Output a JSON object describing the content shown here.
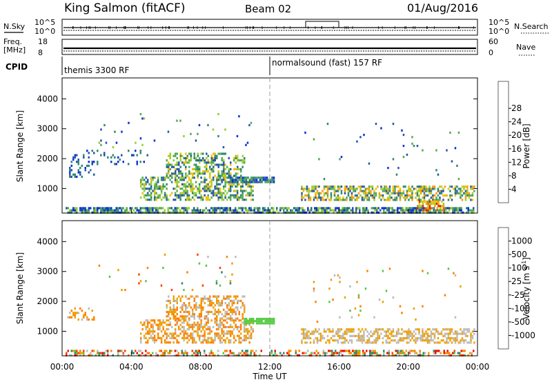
{
  "header": {
    "title": "King Salmon (fitACF)",
    "beam": "Beam 02",
    "date": "01/Aug/2016"
  },
  "top_panels": {
    "nsky_label": "N.Sky",
    "nsky_ticks": [
      "10^5",
      "10^0"
    ],
    "nsearch_label": "N.Search",
    "nsearch_ticks": [
      "10^5",
      "10^0"
    ],
    "freq_label": "Freq.",
    "freq_unit": "[MHz]",
    "freq_ticks": [
      "18",
      "8"
    ],
    "nave_label": "Nave",
    "nave_ticks": [
      "60",
      "0"
    ],
    "cpid_label": "CPID",
    "cpid_segments": [
      {
        "name": "themis 3300 RF",
        "start_hour": 0,
        "end_hour": 12
      },
      {
        "name": "normalsound (fast) 157 RF",
        "start_hour": 12,
        "end_hour": 24
      }
    ]
  },
  "chart_data": [
    {
      "type": "heatmap",
      "name": "power",
      "xlabel": "",
      "ylabel": "Slant Range [km]",
      "xlim": [
        0,
        24
      ],
      "ylim": [
        180,
        4700
      ],
      "yticks": [
        "1000",
        "2000",
        "3000",
        "4000"
      ],
      "ytick_values": [
        1000,
        2000,
        3000,
        4000
      ],
      "colorbar_label": "Power [dB]",
      "colorbar_ticks": [
        "4",
        "8",
        "12",
        "16",
        "20",
        "24",
        "28"
      ],
      "colorbar_colors": [
        "#1030e0",
        "#2a55a8",
        "#2e8a70",
        "#55aa55",
        "#99cc33",
        "#f0c000",
        "#ff9900",
        "#ff6000",
        "#ee2000"
      ],
      "regions": [
        {
          "t0": 0.2,
          "t1": 23.8,
          "r0": 180,
          "r1": 380,
          "density": 0.75,
          "level": [
            0,
            4
          ]
        },
        {
          "t0": 0.3,
          "t1": 1.8,
          "r0": 1400,
          "r1": 1800,
          "density": 0.35,
          "level": [
            0,
            2
          ]
        },
        {
          "t0": 0.5,
          "t1": 5.0,
          "r0": 1800,
          "r1": 2300,
          "density": 0.2,
          "level": [
            0,
            2
          ]
        },
        {
          "t0": 4.5,
          "t1": 11.0,
          "r0": 600,
          "r1": 1400,
          "density": 0.55,
          "level": [
            1,
            5
          ]
        },
        {
          "t0": 6.0,
          "t1": 10.5,
          "r0": 1400,
          "r1": 2200,
          "density": 0.45,
          "level": [
            1,
            5
          ]
        },
        {
          "t0": 9.5,
          "t1": 12.2,
          "r0": 1200,
          "r1": 1400,
          "density": 0.85,
          "level": [
            0,
            3
          ]
        },
        {
          "t0": 13.8,
          "t1": 23.8,
          "r0": 600,
          "r1": 1100,
          "density": 0.6,
          "level": [
            1,
            6
          ]
        },
        {
          "t0": 20.5,
          "t1": 22.0,
          "r0": 300,
          "r1": 600,
          "density": 0.7,
          "level": [
            3,
            8
          ]
        },
        {
          "t0": 2.0,
          "t1": 11.0,
          "r0": 2400,
          "r1": 3600,
          "density": 0.03,
          "level": [
            0,
            4
          ]
        },
        {
          "t0": 14.0,
          "t1": 23.0,
          "r0": 1300,
          "r1": 3200,
          "density": 0.02,
          "level": [
            0,
            3
          ]
        }
      ]
    },
    {
      "type": "heatmap",
      "name": "velocity",
      "xlabel": "Time UT",
      "ylabel": "Slant Range [km]",
      "xlim": [
        0,
        24
      ],
      "ylim": [
        180,
        4700
      ],
      "xticks": [
        "00:00",
        "04:00",
        "08:00",
        "12:00",
        "16:00",
        "20:00",
        "00:00"
      ],
      "xtick_values": [
        0,
        4,
        8,
        12,
        16,
        20,
        24
      ],
      "yticks": [
        "1000",
        "2000",
        "3000",
        "4000"
      ],
      "ytick_values": [
        1000,
        2000,
        3000,
        4000
      ],
      "colorbar_label": "Velocity [m s",
      "colorbar_label_sup": "-1",
      "colorbar_label_end": "]",
      "colorbar_ticks": [
        "1000",
        "500",
        "100",
        "25",
        "-25",
        "-100",
        "-500",
        "-1000"
      ],
      "colorbar_colors": [
        "#1a3ad0",
        "#2a55a8",
        "#2e8a70",
        "#55cc44",
        "#bbbbbb",
        "#f0a000",
        "#ff8000",
        "#ff4000",
        "#ee1000"
      ],
      "regions": [
        {
          "t0": 0.2,
          "t1": 23.8,
          "r0": 180,
          "r1": 380,
          "density": 0.45,
          "level": [
            2,
            8
          ]
        },
        {
          "t0": 0.3,
          "t1": 1.8,
          "r0": 1400,
          "r1": 1800,
          "density": 0.3,
          "level": [
            4,
            6
          ]
        },
        {
          "t0": 4.5,
          "t1": 11.0,
          "r0": 600,
          "r1": 1400,
          "density": 0.5,
          "level": [
            4,
            6
          ]
        },
        {
          "t0": 6.0,
          "t1": 10.5,
          "r0": 1400,
          "r1": 2200,
          "density": 0.45,
          "level": [
            4,
            6
          ]
        },
        {
          "t0": 10.5,
          "t1": 12.2,
          "r0": 1300,
          "r1": 1450,
          "density": 0.9,
          "level": [
            3,
            3
          ]
        },
        {
          "t0": 13.8,
          "t1": 23.8,
          "r0": 600,
          "r1": 1100,
          "density": 0.55,
          "level": [
            4,
            5
          ]
        },
        {
          "t0": 2.0,
          "t1": 11.0,
          "r0": 2400,
          "r1": 3600,
          "density": 0.03,
          "level": [
            2,
            7
          ]
        },
        {
          "t0": 14.0,
          "t1": 23.0,
          "r0": 1300,
          "r1": 3200,
          "density": 0.02,
          "level": [
            3,
            6
          ]
        }
      ]
    }
  ]
}
